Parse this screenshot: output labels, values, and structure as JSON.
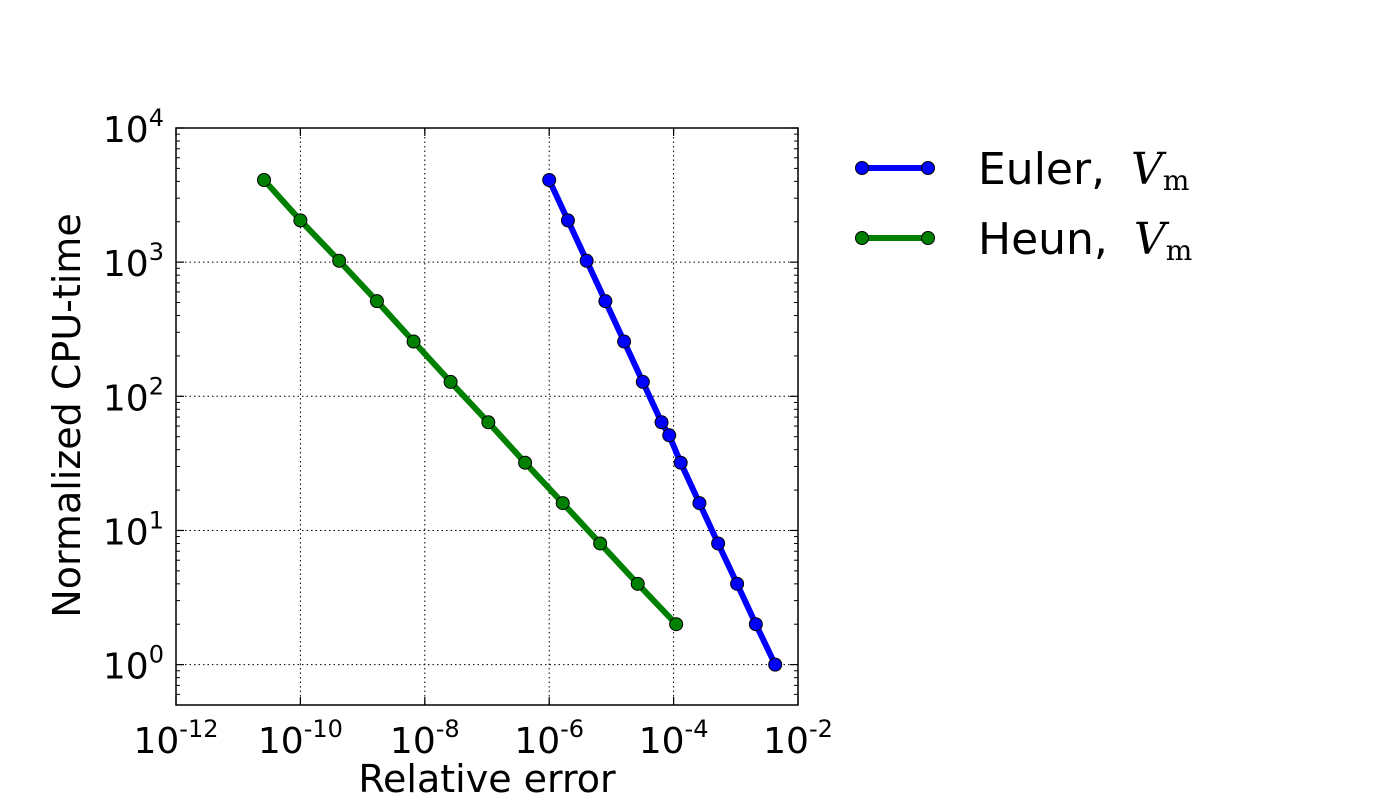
{
  "chart_data": {
    "type": "line",
    "xlabel": "Relative error",
    "ylabel": "Normalized CPU-time",
    "xscale": "log",
    "yscale": "log",
    "xlim": [
      1e-12,
      0.01
    ],
    "ylim": [
      0.5,
      10000
    ],
    "grid": true,
    "legend_position": "outside-right",
    "x_ticks": [
      {
        "base": "10",
        "exp": "-12",
        "value": 1e-12
      },
      {
        "base": "10",
        "exp": "-10",
        "value": 1e-10
      },
      {
        "base": "10",
        "exp": "-8",
        "value": 1e-08
      },
      {
        "base": "10",
        "exp": "-6",
        "value": 1e-06
      },
      {
        "base": "10",
        "exp": "-4",
        "value": 0.0001
      },
      {
        "base": "10",
        "exp": "-2",
        "value": 0.01
      }
    ],
    "y_ticks": [
      {
        "base": "10",
        "exp": "0",
        "value": 1
      },
      {
        "base": "10",
        "exp": "1",
        "value": 10
      },
      {
        "base": "10",
        "exp": "2",
        "value": 100
      },
      {
        "base": "10",
        "exp": "3",
        "value": 1000
      },
      {
        "base": "10",
        "exp": "4",
        "value": 10000
      }
    ],
    "series": [
      {
        "name": "Euler, ",
        "math_symbol": "V",
        "math_subscript": "m",
        "color": "#0000ff",
        "x": [
          1e-06,
          2e-06,
          4e-06,
          8e-06,
          1.6e-05,
          3.2e-05,
          6.4e-05,
          8.5e-05,
          0.00013,
          0.00026,
          0.00052,
          0.00105,
          0.0021,
          0.0043
        ],
        "y": [
          4096,
          2048,
          1024,
          512,
          256,
          128,
          64,
          51.2,
          32,
          16,
          8,
          4,
          2,
          1
        ]
      },
      {
        "name": "Heun, ",
        "math_symbol": "V",
        "math_subscript": "m",
        "color": "#008000",
        "x": [
          2.6e-11,
          1e-10,
          4.2e-10,
          1.7e-09,
          6.6e-09,
          2.6e-08,
          1.05e-07,
          4.1e-07,
          1.65e-06,
          6.6e-06,
          2.65e-05,
          0.00011
        ],
        "y": [
          4096,
          2048,
          1024,
          512,
          256,
          128,
          64,
          32,
          16,
          8,
          4,
          2
        ]
      }
    ]
  }
}
